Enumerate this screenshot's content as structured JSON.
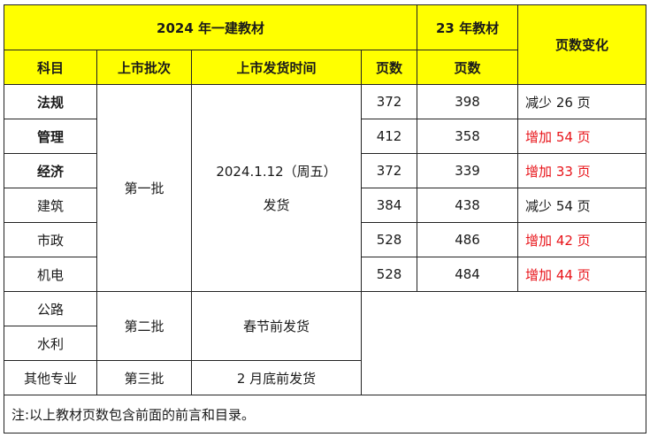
{
  "header": {
    "title_2024": "2024 年一建教材",
    "title_23": "23 年教材",
    "page_change": "页数变化",
    "col_subject": "科目",
    "col_batch": "上市批次",
    "col_ship_time": "上市发货时间",
    "col_pages": "页数",
    "col_pages_23": "页数"
  },
  "batches": {
    "first": "第一批",
    "second": "第二批",
    "third": "第三批"
  },
  "ship_times": {
    "first_line1": "2024.1.12（周五）",
    "first_line2": "发货",
    "second": "春节前发货",
    "third": "2 月底前发货"
  },
  "rows": [
    {
      "subject": "法规",
      "pages": "372",
      "pages_23": "398",
      "change": "减少 26 页"
    },
    {
      "subject": "管理",
      "pages": "412",
      "pages_23": "358",
      "change": "增加 54 页"
    },
    {
      "subject": "经济",
      "pages": "372",
      "pages_23": "339",
      "change": "增加 33 页"
    },
    {
      "subject": "建筑",
      "pages": "384",
      "pages_23": "438",
      "change": "减少 54 页"
    },
    {
      "subject": "市政",
      "pages": "528",
      "pages_23": "486",
      "change": "增加 42 页"
    },
    {
      "subject": "机电",
      "pages": "528",
      "pages_23": "484",
      "change": "增加 44 页"
    }
  ],
  "other_subjects": [
    "公路",
    "水利",
    "其他专业"
  ],
  "note": "注:以上教材页数包含前面的前言和目录。",
  "colors": {
    "header_bg": "#ffff00",
    "increase": "#e8141a",
    "border": "#222222"
  }
}
